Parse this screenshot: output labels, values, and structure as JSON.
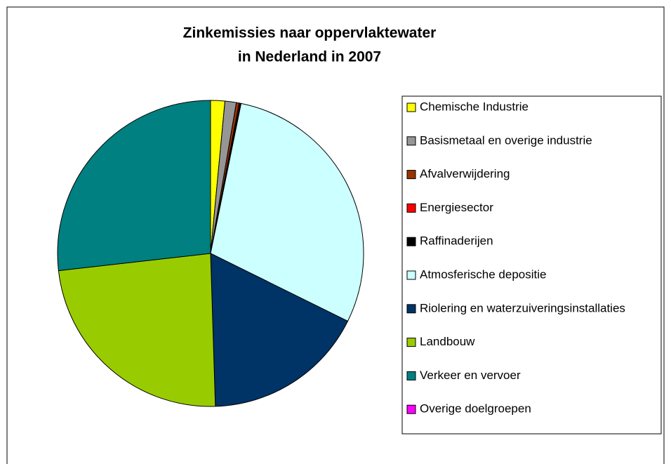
{
  "chart_data": {
    "type": "pie",
    "title": [
      "Zinkemissies naar oppervlaktewater",
      "in Nederland in 2007"
    ],
    "categories": [
      "Chemische Industrie",
      "Basismetaal en overige industrie",
      "Afvalverwijdering",
      "Energiesector",
      "Raffinaderijen",
      "Atmosferische depositie",
      "Riolering en waterzuiveringsinstallaties",
      "Landbouw",
      "Verkeer en vervoer",
      "Overige doelgroepen"
    ],
    "values": [
      1.5,
      1.2,
      0.3,
      0.1,
      0.1,
      29.1,
      17.2,
      23.7,
      26.8,
      0.0
    ],
    "colors": [
      "#ffff00",
      "#969696",
      "#993300",
      "#ff0000",
      "#000000",
      "#ccffff",
      "#003366",
      "#99cc00",
      "#008080",
      "#ff00ff"
    ],
    "legend": "right"
  }
}
